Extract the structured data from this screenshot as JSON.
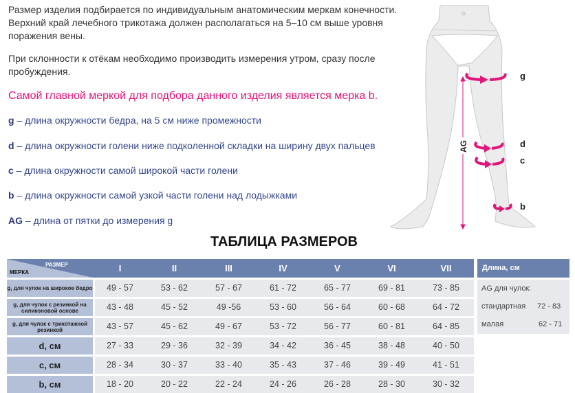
{
  "intro": {
    "paragraph1": "Размер изделия подбирается по индивидуальным анатомическим меркам конечности. Верхний край лечебного трикотажа должен располагаться на 5–10 см выше уровня поражения вены.",
    "paragraph2": "При склонности к отёкам необходимо производить измерения утром, сразу после пробуждения.",
    "accent": "Самой главной меркой для подбора данного изделия является мерка b."
  },
  "legend": [
    {
      "key": "g",
      "text": " – длина окружности бедра, на 5 см ниже промежности"
    },
    {
      "key": "d",
      "text": " – длина окружности голени ниже подколенной складки на ширину двух пальцев"
    },
    {
      "key": "c",
      "text": " – длина окружности самой широкой части голени"
    },
    {
      "key": "b",
      "text": " – длина окружности самой узкой части голени над лодыжками"
    },
    {
      "key": "AG",
      "text": " – длина от пятки до измерения g"
    }
  ],
  "diagram": {
    "labels": {
      "g": "g",
      "d": "d",
      "c": "c",
      "b": "b",
      "ag": "AG"
    },
    "arrow_color": "#e0167a"
  },
  "table": {
    "title": "ТАБЛИЦА РАЗМЕРОВ",
    "corner_top": "РАЗМЕР",
    "corner_bottom": "МЕРКА",
    "sizes": [
      "I",
      "II",
      "III",
      "IV",
      "V",
      "VI",
      "VII"
    ],
    "rows": [
      {
        "label": "g, для чулок на широкое бедро",
        "small": true,
        "values": [
          "49 - 57",
          "53 - 62",
          "57 - 67",
          "61 - 72",
          "65 - 77",
          "69 - 81",
          "73 - 85"
        ]
      },
      {
        "label": "g, для чулок с  резинкой на силиконовой основе",
        "small": true,
        "values": [
          "43 - 48",
          "45 - 52",
          "49 -56",
          "53 - 60",
          "56 - 64",
          "60 - 68",
          "64 - 72"
        ]
      },
      {
        "label": "g, для чулок с трикотажной резинкой",
        "small": true,
        "values": [
          "43 - 57",
          "45 - 62",
          "49 - 67",
          "53 - 72",
          "56 - 77",
          "60 - 81",
          "64 - 85"
        ]
      },
      {
        "label": "d, см",
        "small": false,
        "values": [
          "27 - 33",
          "29 - 36",
          "32 - 39",
          "34 - 42",
          "36 - 45",
          "38 - 48",
          "40 - 50"
        ]
      },
      {
        "label": "c, см",
        "small": false,
        "values": [
          "28 - 34",
          "30 - 37",
          "33 - 40",
          "35 - 43",
          "37 - 46",
          "39 - 49",
          "41 - 51"
        ]
      },
      {
        "label": "b, см",
        "small": false,
        "values": [
          "18 - 20",
          "20 - 22",
          "22 - 24",
          "24 - 26",
          "26 - 28",
          "28 - 30",
          "30 - 32"
        ]
      }
    ],
    "header_color": "#6b81ad"
  },
  "length_box": {
    "header": "Длина, см",
    "subtitle": "AG для чулок:",
    "items": [
      {
        "label": "стандартная",
        "value": "72 - 83"
      },
      {
        "label": "малая",
        "value": "62 - 71"
      }
    ]
  }
}
